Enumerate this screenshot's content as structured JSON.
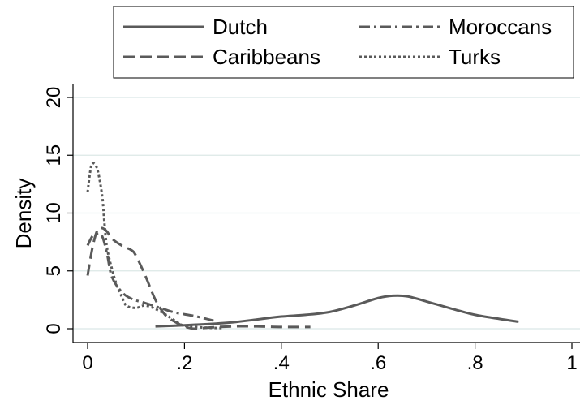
{
  "chart_data": {
    "type": "line",
    "title": "",
    "xlabel": "Ethnic Share",
    "ylabel": "Density",
    "xlim": [
      0,
      1
    ],
    "ylim": [
      0,
      20
    ],
    "x_ticks": [
      {
        "value": 0,
        "label": "0"
      },
      {
        "value": 0.2,
        "label": ".2"
      },
      {
        "value": 0.4,
        "label": ".4"
      },
      {
        "value": 0.6,
        "label": ".6"
      },
      {
        "value": 0.8,
        "label": ".8"
      },
      {
        "value": 1,
        "label": "1"
      }
    ],
    "y_ticks": [
      {
        "value": 0,
        "label": "0"
      },
      {
        "value": 5,
        "label": "5"
      },
      {
        "value": 10,
        "label": "10"
      },
      {
        "value": 15,
        "label": "15"
      },
      {
        "value": 20,
        "label": "20"
      }
    ],
    "grid": "horizontal",
    "legend_position": "top",
    "series": [
      {
        "name": "Dutch",
        "style": "solid",
        "color": "#5a5a5a",
        "x": [
          0.14,
          0.2,
          0.25,
          0.3,
          0.35,
          0.4,
          0.45,
          0.5,
          0.55,
          0.6,
          0.63,
          0.66,
          0.7,
          0.75,
          0.8,
          0.85,
          0.89
        ],
        "y": [
          0.2,
          0.3,
          0.4,
          0.55,
          0.8,
          1.05,
          1.2,
          1.45,
          2.0,
          2.65,
          2.85,
          2.8,
          2.35,
          1.75,
          1.2,
          0.85,
          0.6
        ]
      },
      {
        "name": "Moroccans",
        "style": "dashdot",
        "color": "#5a5a5a",
        "x": [
          0.0,
          0.01,
          0.02,
          0.03,
          0.04,
          0.05,
          0.07,
          0.09,
          0.12,
          0.15,
          0.18,
          0.22,
          0.26
        ],
        "y": [
          7.2,
          8.0,
          8.2,
          8.0,
          6.5,
          4.5,
          3.2,
          2.6,
          2.2,
          1.8,
          1.4,
          1.1,
          0.7
        ]
      },
      {
        "name": "Caribbeans",
        "style": "dashed",
        "color": "#5a5a5a",
        "x": [
          0.0,
          0.01,
          0.02,
          0.03,
          0.04,
          0.05,
          0.07,
          0.09,
          0.1,
          0.12,
          0.14,
          0.16,
          0.18,
          0.2,
          0.22,
          0.25,
          0.3,
          0.35,
          0.4,
          0.46
        ],
        "y": [
          4.6,
          7.0,
          8.5,
          8.7,
          8.4,
          7.8,
          7.2,
          6.8,
          6.3,
          4.5,
          2.5,
          1.2,
          0.6,
          0.2,
          0.0,
          0.1,
          0.2,
          0.2,
          0.15,
          0.15
        ]
      },
      {
        "name": "Turks",
        "style": "dotted",
        "color": "#5a5a5a",
        "x": [
          0.0,
          0.005,
          0.01,
          0.02,
          0.03,
          0.035,
          0.04,
          0.05,
          0.06,
          0.07,
          0.08,
          0.1,
          0.12,
          0.15,
          0.18,
          0.2,
          0.24,
          0.28
        ],
        "y": [
          11.8,
          13.5,
          14.3,
          13.8,
          11.5,
          9.0,
          7.0,
          5.2,
          3.8,
          2.8,
          2.0,
          1.8,
          2.0,
          1.5,
          0.7,
          0.25,
          0.1,
          0.05
        ]
      }
    ]
  }
}
